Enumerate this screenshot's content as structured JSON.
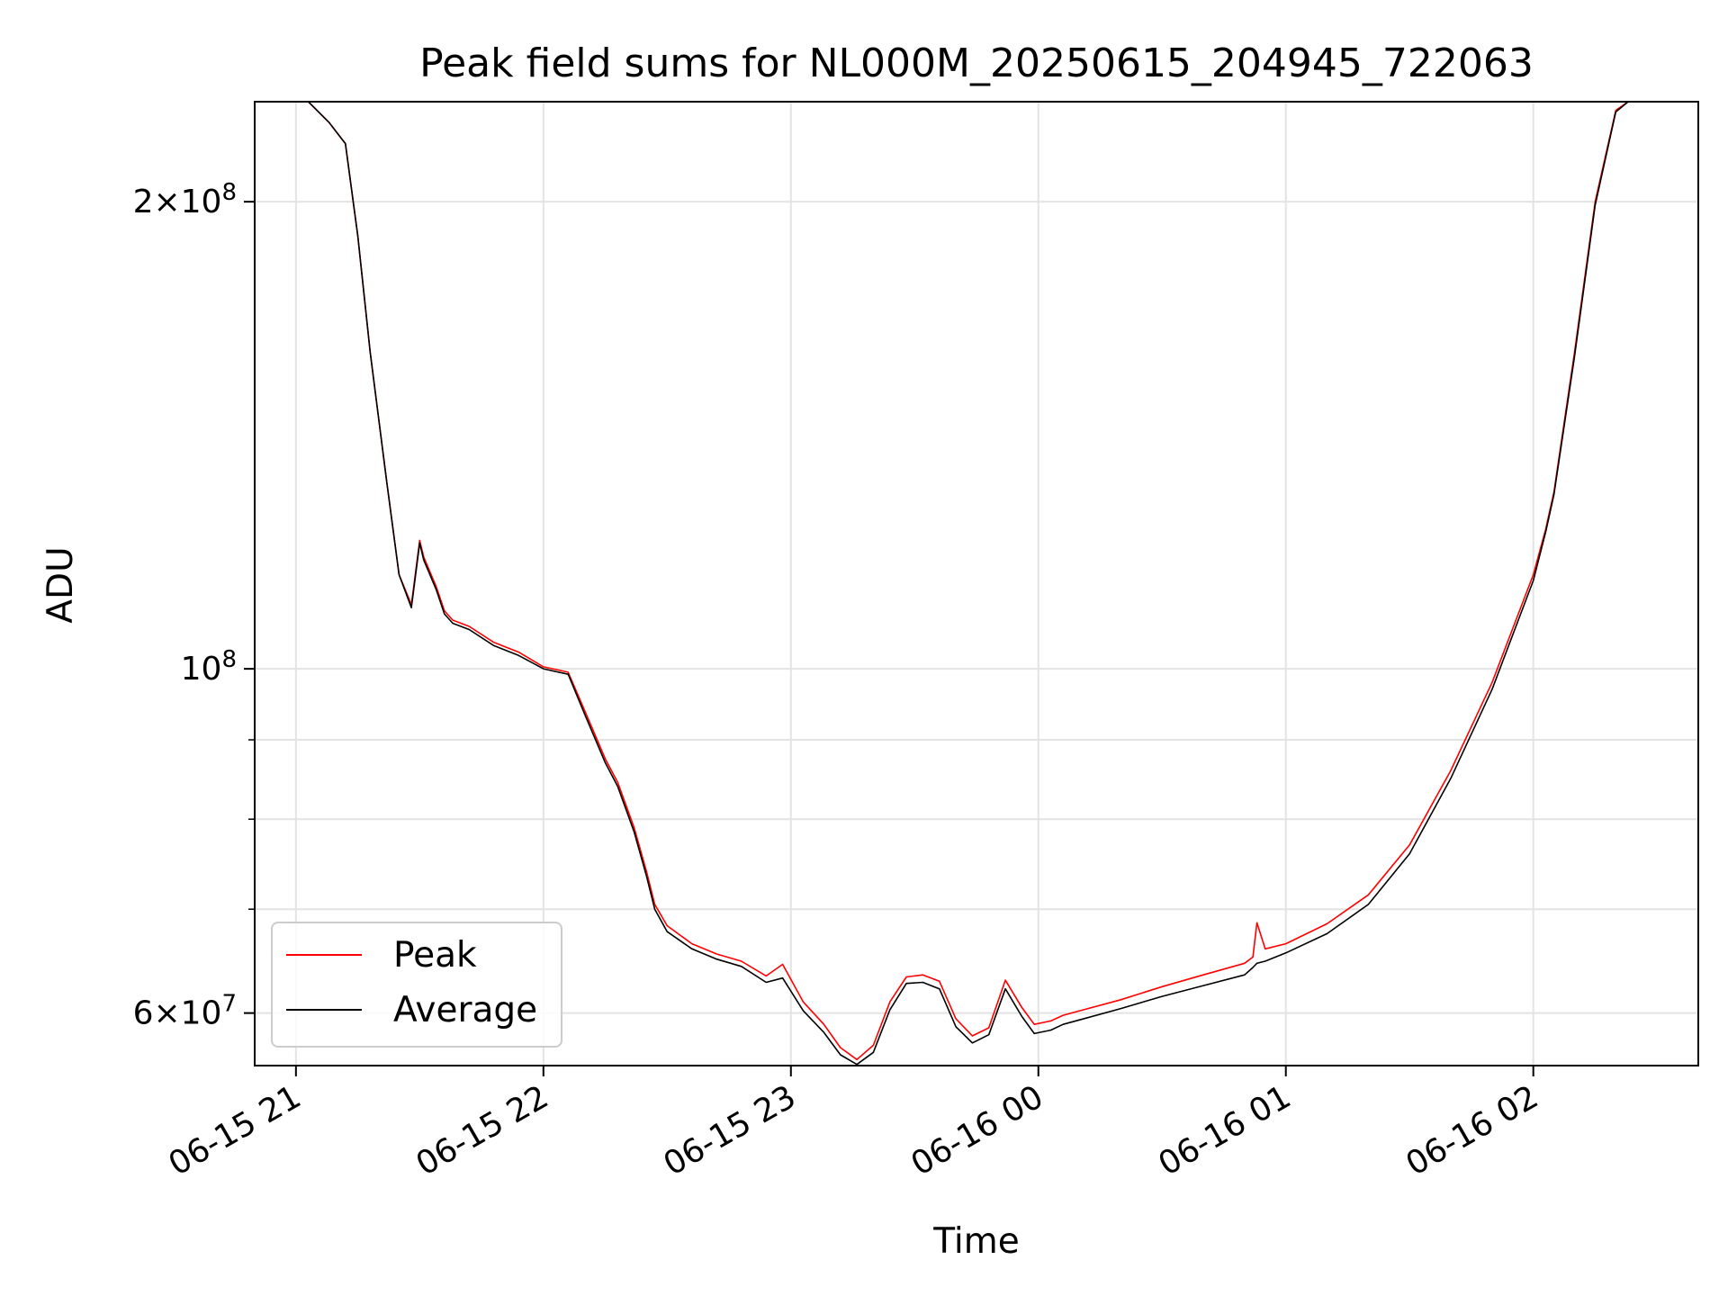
{
  "chart_data": {
    "type": "line",
    "title": "Peak field sums for NL000M_20250615_204945_722063",
    "xlabel": "Time",
    "ylabel": "ADU",
    "yscale": "log",
    "ylim": [
      55500000,
      232000000
    ],
    "xlim": [
      "2025-06-15 20:50",
      "2025-06-16 02:40"
    ],
    "grid": true,
    "legend": "lower-left",
    "x_ticks": [
      {
        "value": "2025-06-15 21:00",
        "label": "06-15 21"
      },
      {
        "value": "2025-06-15 22:00",
        "label": "06-15 22"
      },
      {
        "value": "2025-06-15 23:00",
        "label": "06-15 23"
      },
      {
        "value": "2025-06-16 00:00",
        "label": "06-16 00"
      },
      {
        "value": "2025-06-16 01:00",
        "label": "06-16 01"
      },
      {
        "value": "2025-06-16 02:00",
        "label": "06-16 02"
      }
    ],
    "y_major_ticks": [
      {
        "value": 60000000,
        "mantissa": "6",
        "exponent": "7"
      },
      {
        "value": 100000000,
        "mantissa": "",
        "exponent": "8"
      },
      {
        "value": 200000000,
        "mantissa": "2",
        "exponent": "8"
      }
    ],
    "y_minor_ticks": [
      70000000,
      80000000,
      90000000
    ],
    "x": [
      "2025-06-15 21:00",
      "2025-06-15 21:03",
      "2025-06-15 21:08",
      "2025-06-15 21:12",
      "2025-06-15 21:15",
      "2025-06-15 21:18",
      "2025-06-15 21:22",
      "2025-06-15 21:25",
      "2025-06-15 21:28",
      "2025-06-15 21:30",
      "2025-06-15 21:31",
      "2025-06-15 21:34",
      "2025-06-15 21:36",
      "2025-06-15 21:38",
      "2025-06-15 21:42",
      "2025-06-15 21:48",
      "2025-06-15 21:54",
      "2025-06-15 22:00",
      "2025-06-15 22:06",
      "2025-06-15 22:10",
      "2025-06-15 22:15",
      "2025-06-15 22:18",
      "2025-06-15 22:22",
      "2025-06-15 22:25",
      "2025-06-15 22:27",
      "2025-06-15 22:30",
      "2025-06-15 22:36",
      "2025-06-15 22:42",
      "2025-06-15 22:48",
      "2025-06-15 22:54",
      "2025-06-15 22:58",
      "2025-06-15 23:03",
      "2025-06-15 23:08",
      "2025-06-15 23:12",
      "2025-06-15 23:16",
      "2025-06-15 23:20",
      "2025-06-15 23:24",
      "2025-06-15 23:28",
      "2025-06-15 23:32",
      "2025-06-15 23:36",
      "2025-06-15 23:40",
      "2025-06-15 23:44",
      "2025-06-15 23:48",
      "2025-06-15 23:52",
      "2025-06-15 23:56",
      "2025-06-15 23:59",
      "2025-06-16 00:03",
      "2025-06-16 00:06",
      "2025-06-16 00:10",
      "2025-06-16 00:20",
      "2025-06-16 00:30",
      "2025-06-16 00:40",
      "2025-06-16 00:50",
      "2025-06-16 00:52",
      "2025-06-16 00:53",
      "2025-06-16 00:55",
      "2025-06-16 01:00",
      "2025-06-16 01:10",
      "2025-06-16 01:20",
      "2025-06-16 01:30",
      "2025-06-16 01:40",
      "2025-06-16 01:50",
      "2025-06-16 02:00",
      "2025-06-16 02:03",
      "2025-06-16 02:05",
      "2025-06-16 02:10",
      "2025-06-16 02:15",
      "2025-06-16 02:20",
      "2025-06-16 02:23",
      "2025-06-16 02:25"
    ],
    "series": [
      {
        "name": "Peak",
        "color": "#ff0000",
        "values": [
          232000000,
          232000000,
          225000000,
          218000000,
          190000000,
          160000000,
          132000000,
          115000000,
          110000000,
          121000000,
          118000000,
          113000000,
          109000000,
          107500000,
          106500000,
          104000000,
          102500000,
          100300000,
          99500000,
          94000000,
          87500000,
          84500000,
          79000000,
          74000000,
          70500000,
          68300000,
          66500000,
          65500000,
          64800000,
          63400000,
          64500000,
          61000000,
          59000000,
          57000000,
          56000000,
          57200000,
          61000000,
          63300000,
          63500000,
          62900000,
          59500000,
          58000000,
          58700000,
          63000000,
          60500000,
          59000000,
          59300000,
          59800000,
          60200000,
          61200000,
          62400000,
          63500000,
          64600000,
          65200000,
          68600000,
          66000000,
          66500000,
          68500000,
          71500000,
          77000000,
          86000000,
          98000000,
          115000000,
          123000000,
          130000000,
          160000000,
          200000000,
          229000000,
          232000000,
          232000000
        ]
      },
      {
        "name": "Average",
        "color": "#000000",
        "values": [
          232000000,
          232000000,
          225000000,
          218000000,
          190000000,
          160000000,
          132000000,
          115000000,
          109500000,
          120500000,
          117500000,
          112500000,
          108500000,
          107000000,
          106000000,
          103500000,
          102000000,
          100000000,
          99200000,
          93500000,
          87000000,
          84000000,
          78500000,
          73500000,
          70000000,
          67700000,
          66000000,
          65000000,
          64300000,
          62800000,
          63200000,
          60200000,
          58300000,
          56400000,
          55600000,
          56600000,
          60300000,
          62700000,
          62800000,
          62200000,
          58800000,
          57400000,
          58100000,
          62200000,
          59700000,
          58200000,
          58500000,
          59000000,
          59400000,
          60400000,
          61500000,
          62500000,
          63500000,
          64200000,
          64600000,
          64800000,
          65600000,
          67500000,
          70500000,
          76000000,
          85000000,
          97000000,
          114000000,
          122500000,
          129500000,
          159000000,
          199000000,
          228500000,
          232000000,
          232000000
        ]
      }
    ]
  }
}
